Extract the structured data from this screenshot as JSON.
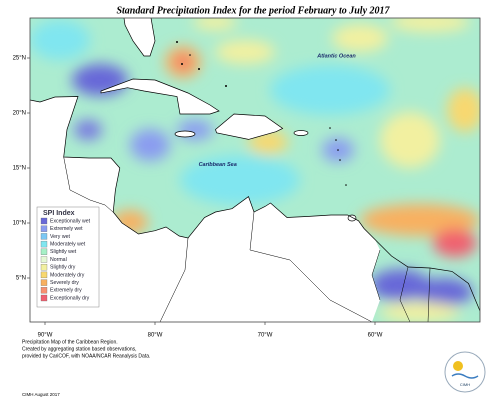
{
  "title": "Standard Precipitation Index for the period February to July 2017",
  "place_labels": [
    {
      "text": "Atlantic Ocean",
      "lon": -63.5,
      "lat": 25.2
    },
    {
      "text": "Caribbean Sea",
      "lon": -74.3,
      "lat": 15.3
    }
  ],
  "lat_ticks": [
    {
      "value": 25,
      "label": "25°N"
    },
    {
      "value": 20,
      "label": "20°N"
    },
    {
      "value": 15,
      "label": "15°N"
    },
    {
      "value": 10,
      "label": "10°N"
    },
    {
      "value": 5,
      "label": "5°N"
    }
  ],
  "lon_ticks": [
    {
      "value": -90,
      "label": "90°W"
    },
    {
      "value": -80,
      "label": "80°W"
    },
    {
      "value": -70,
      "label": "70°W"
    },
    {
      "value": -60,
      "label": "60°W"
    }
  ],
  "legend": {
    "title": "SPI Index",
    "items": [
      {
        "label": "Exceptionally wet",
        "color": "#6868d8"
      },
      {
        "label": "Extremely wet",
        "color": "#8a9cf0"
      },
      {
        "label": "Very wet",
        "color": "#7cc8f4"
      },
      {
        "label": "Moderately wet",
        "color": "#80e6f0"
      },
      {
        "label": "Slightly wet",
        "color": "#a6f0c6"
      },
      {
        "label": "Normal",
        "color": "#e4f8d4"
      },
      {
        "label": "Slightly dry",
        "color": "#f2f0a0"
      },
      {
        "label": "Moderately dry",
        "color": "#f8d870"
      },
      {
        "label": "Severely dry",
        "color": "#f8b060"
      },
      {
        "label": "Extremely dry",
        "color": "#f89070"
      },
      {
        "label": "Exceptionally dry",
        "color": "#f06070"
      }
    ]
  },
  "note": [
    "Precipitation Map of the Caribbean Region.",
    "Created by aggregating station based observations,",
    "provided by CariCOF, with NOAA/NCAR Reanalysis Data."
  ],
  "credit": "CIMH August 2017",
  "logo": "CIMH"
}
